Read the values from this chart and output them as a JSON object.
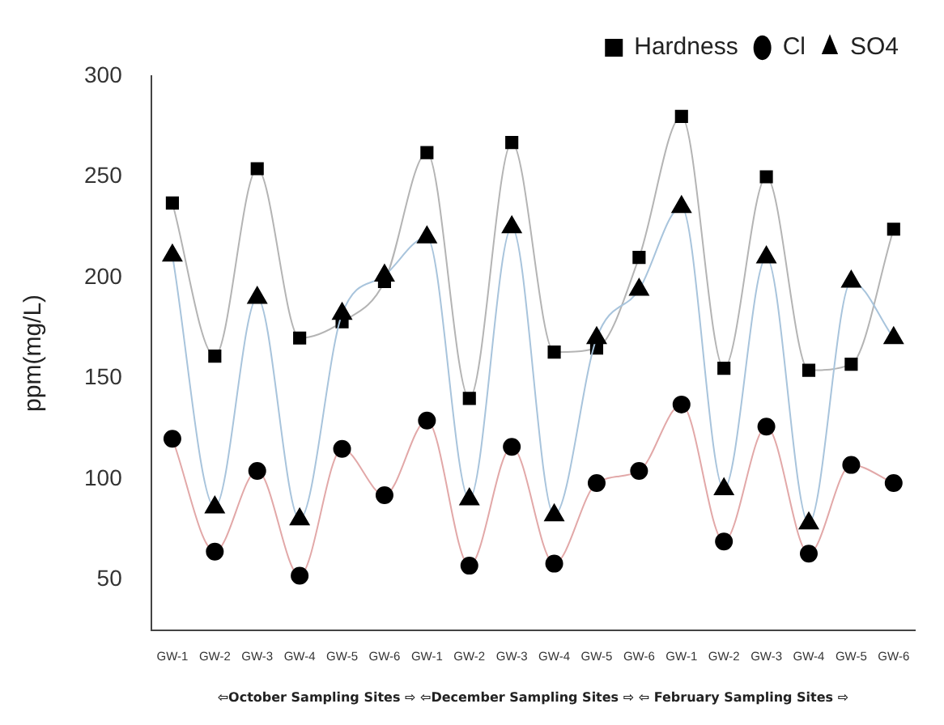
{
  "chart_data": {
    "type": "line",
    "ylabel": "ppm(mg/L)",
    "xlabel": "⇦October Sampling Sites ⇨ ⇦December Sampling Sites ⇨ ⇦ February Sampling Sites ⇨",
    "categories": [
      "GW-1",
      "GW-2",
      "GW-3",
      "GW-4",
      "GW-5",
      "GW-6",
      "GW-1",
      "GW-2",
      "GW-3",
      "GW-4",
      "GW-5",
      "GW-6",
      "GW-1",
      "GW-2",
      "GW-3",
      "GW-4",
      "GW-5",
      "GW-6"
    ],
    "series": [
      {
        "name": "Hardness",
        "color": "#b4b4b4",
        "marker": "square",
        "values": [
          237,
          161,
          254,
          170,
          178,
          198,
          262,
          140,
          267,
          163,
          165,
          210,
          280,
          155,
          250,
          154,
          157,
          224
        ]
      },
      {
        "name": "Cl",
        "color": "#e2a8a8",
        "marker": "circle",
        "values": [
          120,
          64,
          104,
          52,
          115,
          92,
          129,
          57,
          116,
          58,
          98,
          104,
          137,
          69,
          126,
          63,
          107,
          98
        ]
      },
      {
        "name": "SO4",
        "color": "#a8c4dc",
        "marker": "triangle",
        "values": [
          211,
          86,
          190,
          80,
          182,
          201,
          220,
          90,
          225,
          82,
          170,
          194,
          235,
          95,
          210,
          78,
          198,
          170
        ]
      }
    ],
    "ylim": [
      25,
      300
    ],
    "yticks": [
      50,
      100,
      150,
      200,
      250,
      300
    ],
    "grid": false,
    "legend": "top right"
  }
}
